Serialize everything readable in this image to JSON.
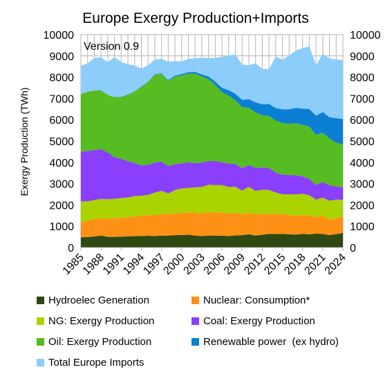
{
  "chart_data": {
    "type": "area",
    "stacked": true,
    "title": "Europe Exergy Production+Imports",
    "annotation": "Version 0.9",
    "ylabel": "Exergy Production (TWh)",
    "xlabel": "",
    "ylim": [
      0,
      10000
    ],
    "yticks": [
      0,
      1000,
      2000,
      3000,
      4000,
      5000,
      6000,
      7000,
      8000,
      9000,
      10000
    ],
    "xlim": [
      1985,
      2024
    ],
    "xticks": [
      1985,
      1988,
      1991,
      1994,
      1997,
      2000,
      2003,
      2006,
      2009,
      2012,
      2015,
      2018,
      2021,
      2024
    ],
    "grid": true,
    "legend_position": "bottom",
    "x": [
      1985,
      1986,
      1987,
      1988,
      1989,
      1990,
      1991,
      1992,
      1993,
      1994,
      1995,
      1996,
      1997,
      1998,
      1999,
      2000,
      2001,
      2002,
      2003,
      2004,
      2005,
      2006,
      2007,
      2008,
      2009,
      2010,
      2011,
      2012,
      2013,
      2014,
      2015,
      2016,
      2017,
      2018,
      2019,
      2020,
      2021,
      2022,
      2023,
      2024
    ],
    "series": [
      {
        "name": "Hydroelec Generation",
        "color": "#2e4a12",
        "values": [
          480,
          490,
          520,
          560,
          500,
          500,
          510,
          520,
          530,
          540,
          550,
          540,
          560,
          560,
          580,
          590,
          600,
          560,
          540,
          560,
          560,
          550,
          540,
          570,
          580,
          620,
          560,
          600,
          640,
          630,
          640,
          620,
          610,
          640,
          620,
          650,
          640,
          580,
          630,
          680
        ]
      },
      {
        "name": "Nuclear: Consumption*",
        "color": "#ff9016",
        "values": [
          700,
          780,
          820,
          820,
          850,
          870,
          880,
          910,
          930,
          950,
          960,
          990,
          1000,
          1020,
          1020,
          1030,
          1050,
          1080,
          1060,
          1090,
          1090,
          1080,
          1060,
          1040,
          990,
          1000,
          1000,
          960,
          940,
          960,
          920,
          920,
          880,
          880,
          880,
          760,
          860,
          720,
          740,
          780
        ]
      },
      {
        "name": "NG: Exergy Production",
        "color": "#aad400",
        "values": [
          980,
          900,
          890,
          900,
          920,
          920,
          930,
          920,
          960,
          940,
          960,
          1050,
          1100,
          960,
          1100,
          1150,
          1150,
          1190,
          1240,
          1300,
          1280,
          1300,
          1240,
          1240,
          1100,
          1230,
          1100,
          1150,
          1120,
          1000,
          940,
          960,
          1000,
          1000,
          960,
          840,
          840,
          900,
          880,
          780
        ]
      },
      {
        "name": "Coal: Exergy Production",
        "color": "#8a3ffc",
        "values": [
          2340,
          2360,
          2350,
          2340,
          2200,
          1950,
          1850,
          1700,
          1550,
          1420,
          1420,
          1400,
          1380,
          1280,
          1220,
          1180,
          1200,
          1130,
          1150,
          1110,
          1130,
          1070,
          1100,
          1070,
          1050,
          1020,
          1080,
          1040,
          1030,
          930,
          920,
          910,
          900,
          820,
          760,
          690,
          740,
          720,
          620,
          580
        ]
      },
      {
        "name": "Oil: Exergy Production",
        "color": "#57bb22",
        "values": [
          2700,
          2780,
          2790,
          2760,
          2690,
          2830,
          2900,
          3130,
          3350,
          3700,
          3880,
          4130,
          4110,
          4000,
          4100,
          4140,
          4160,
          4210,
          4040,
          3850,
          3570,
          3300,
          3200,
          3000,
          2870,
          2700,
          2600,
          2460,
          2450,
          2440,
          2430,
          2400,
          2450,
          2420,
          2460,
          2350,
          2320,
          2200,
          2060,
          2000
        ]
      },
      {
        "name": "Renewable power  (ex hydro)",
        "color": "#0a7fd4",
        "values": [
          5,
          5,
          5,
          5,
          5,
          5,
          10,
          10,
          10,
          15,
          20,
          25,
          30,
          40,
          50,
          60,
          70,
          80,
          100,
          120,
          160,
          200,
          250,
          300,
          340,
          400,
          480,
          520,
          560,
          590,
          640,
          680,
          720,
          760,
          820,
          900,
          960,
          1000,
          1140,
          1220
        ]
      },
      {
        "name": "Total Europe Imports",
        "color": "#8ccdfb",
        "values": [
          1335,
          1335,
          1525,
          1545,
          1535,
          1875,
          1620,
          1420,
          1210,
          845,
          770,
          695,
          680,
          870,
          680,
          590,
          630,
          640,
          780,
          860,
          1120,
          1450,
          1630,
          1850,
          1660,
          1590,
          1830,
          1660,
          1630,
          2420,
          2330,
          2530,
          2690,
          2840,
          2950,
          2370,
          2740,
          2760,
          2760,
          2760
        ]
      }
    ]
  }
}
